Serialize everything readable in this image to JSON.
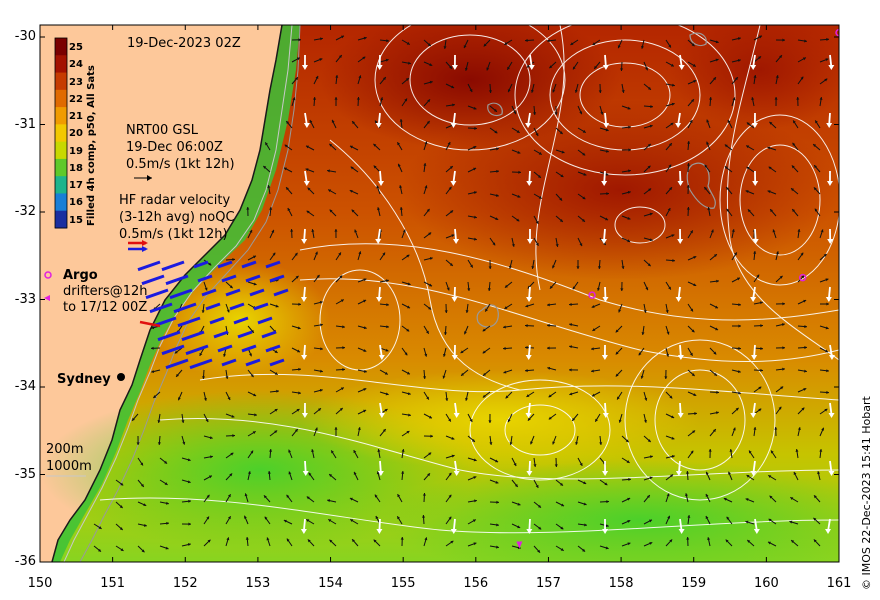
{
  "title": "19-Dec-2023 02Z",
  "colorbar": {
    "label": "Filled 4h comp, p50, All Sats",
    "ticks": [
      "25",
      "24",
      "23",
      "22",
      "21",
      "20",
      "19",
      "18",
      "17",
      "16",
      "15"
    ],
    "colors": [
      "#7a0000",
      "#a31200",
      "#c63b00",
      "#e06a00",
      "#f09b00",
      "#f2c800",
      "#c8d800",
      "#5fc92a",
      "#1fb48c",
      "#1a7fd6",
      "#1a2ea0"
    ]
  },
  "gsl": {
    "line1": "NRT00 GSL",
    "line2": "19-Dec 06:00Z",
    "line3": "0.5m/s (1kt 12h)"
  },
  "hf_radar": {
    "line1": "HF radar velocity",
    "line2": "(3-12h avg) noQC",
    "line3": "0.5m/s (1kt 12h)"
  },
  "argo_label": "Argo",
  "drifters": {
    "line1": "drifters@12h",
    "line2": "to 17/12 00Z"
  },
  "city_label": "Sydney",
  "isobaths": [
    "200m",
    "1000m"
  ],
  "x_ticks": [
    "150",
    "151",
    "152",
    "153",
    "154",
    "155",
    "156",
    "157",
    "158",
    "159",
    "160",
    "161"
  ],
  "y_ticks": [
    "-30",
    "-31",
    "-32",
    "-33",
    "-34",
    "-35",
    "-36"
  ],
  "credit": "© IMOS 22-Dec-2023 15:41 Hobart",
  "map_data": {
    "lon_range": [
      150,
      161
    ],
    "lat_range": [
      -36,
      -29.8
    ],
    "argo_floats": [
      [
        157.6,
        -32.95
      ],
      [
        160.5,
        -32.75
      ],
      [
        161.0,
        -29.95
      ]
    ],
    "drifter_points": [
      [
        156.6,
        -35.8
      ]
    ]
  }
}
